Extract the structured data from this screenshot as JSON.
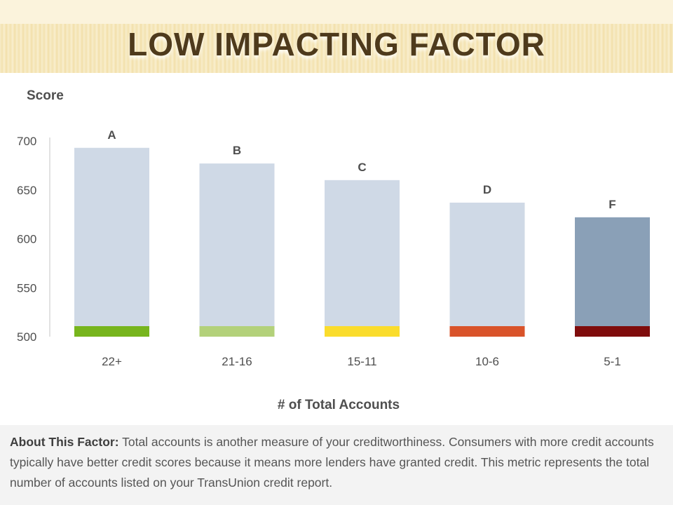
{
  "header": {
    "title": "LOW IMPACTING FACTOR"
  },
  "chart_data": {
    "type": "bar",
    "ylabel": "Score",
    "xlabel": "# of Total Accounts",
    "categories": [
      "22+",
      "21-16",
      "15-11",
      "10-6",
      "5-1"
    ],
    "values": [
      693,
      677,
      660,
      637,
      622
    ],
    "grades": [
      "A",
      "B",
      "C",
      "D",
      "F"
    ],
    "band_colors": [
      "#77b51d",
      "#b3d17a",
      "#fadc2c",
      "#d9532a",
      "#7f0c0c"
    ],
    "bar_colors": [
      "#cfd9e6",
      "#cfd9e6",
      "#cfd9e6",
      "#cfd9e6",
      "#8aa0b7"
    ],
    "yticks": [
      700,
      650,
      600,
      550,
      500
    ],
    "ylim": [
      500,
      700
    ],
    "grid": false,
    "legend": "none"
  },
  "about": {
    "label": "About This Factor:",
    "text": "Total accounts is another measure of your creditworthiness. Consumers with more credit accounts typically have better credit scores because it means more lenders have granted credit. This metric represents the total number of accounts listed on your TransUnion credit report."
  }
}
